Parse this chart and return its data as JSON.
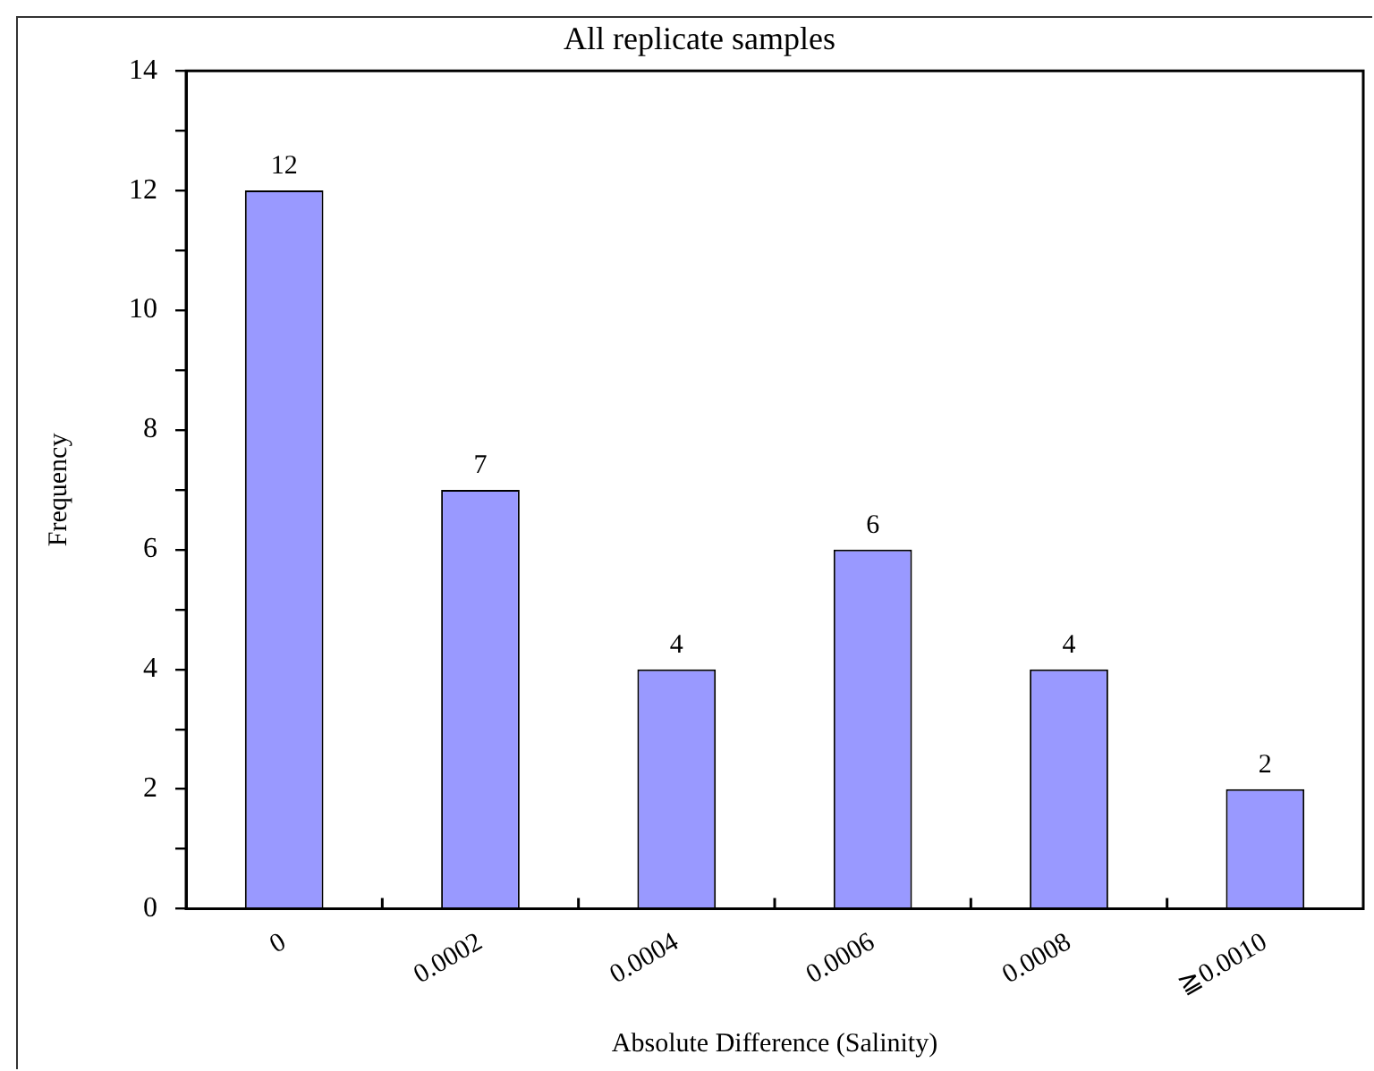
{
  "chart_data": {
    "type": "bar",
    "title": "All replicate samples",
    "xlabel": "Absolute Difference (Salinity)",
    "ylabel": "Frequency",
    "categories": [
      "0",
      "0.0002",
      "0.0004",
      "0.0006",
      "0.0008",
      "≧0.0010"
    ],
    "values": [
      12,
      7,
      4,
      6,
      4,
      2
    ],
    "color": "#9999ff",
    "ylim": [
      0,
      14
    ],
    "yticks": [
      0,
      {
        "value": 1,
        "label": null
      },
      2,
      {
        "value": 3,
        "label": null
      },
      4,
      {
        "value": 5,
        "label": null
      },
      6,
      {
        "value": 7,
        "label": null
      },
      8,
      {
        "value": 9,
        "label": null
      },
      10,
      {
        "value": 11,
        "label": null
      },
      12,
      {
        "value": 13,
        "label": null
      },
      14
    ],
    "grid": false,
    "legend": false,
    "data_labels": true
  }
}
